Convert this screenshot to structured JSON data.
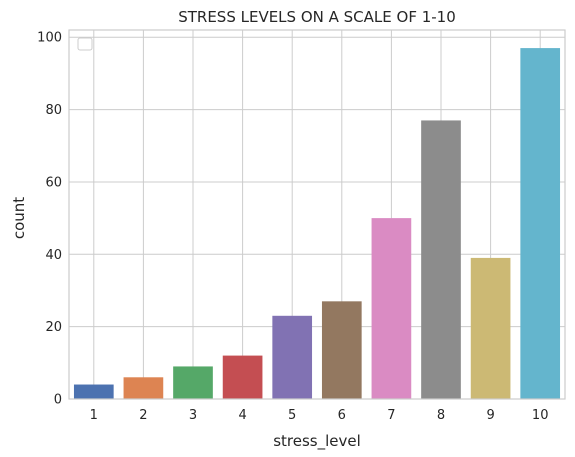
{
  "chart_data": {
    "type": "bar",
    "title": "STRESS LEVELS ON A SCALE OF 1-10",
    "xlabel": "stress_level",
    "ylabel": "count",
    "categories": [
      "1",
      "2",
      "3",
      "4",
      "5",
      "6",
      "7",
      "8",
      "9",
      "10"
    ],
    "values": [
      4,
      6,
      9,
      12,
      23,
      27,
      50,
      77,
      39,
      97
    ],
    "ylim": [
      0,
      102
    ],
    "yticks": [
      0,
      20,
      40,
      60,
      80,
      100
    ],
    "grid": true,
    "legend": "top-left (empty)",
    "colors": [
      "#4c72b0",
      "#dd8452",
      "#55a868",
      "#c44e52",
      "#8172b3",
      "#937860",
      "#da8bc3",
      "#8c8c8c",
      "#ccb974",
      "#64b5cd"
    ],
    "style": {
      "grid_color": "#cccccc",
      "frame_color": "#cccccc",
      "background": "#ffffff"
    }
  }
}
